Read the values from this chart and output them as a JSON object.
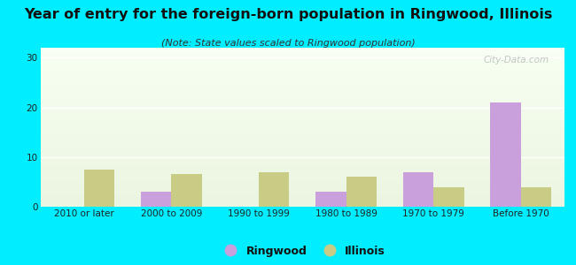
{
  "title": "Year of entry for the foreign-born population in Ringwood, Illinois",
  "subtitle": "(Note: State values scaled to Ringwood population)",
  "categories": [
    "2010 or later",
    "2000 to 2009",
    "1990 to 1999",
    "1980 to 1989",
    "1970 to 1979",
    "Before 1970"
  ],
  "ringwood_values": [
    0,
    3,
    0,
    3,
    7,
    21
  ],
  "illinois_values": [
    7.5,
    6.5,
    7,
    6,
    4,
    4
  ],
  "ringwood_color": "#c9a0dc",
  "illinois_color": "#c8cc84",
  "background_outer": "#00eeff",
  "ylim": [
    0,
    32
  ],
  "yticks": [
    0,
    10,
    20,
    30
  ],
  "bar_width": 0.35,
  "title_fontsize": 11.5,
  "subtitle_fontsize": 8,
  "tick_fontsize": 7.5,
  "legend_fontsize": 9,
  "watermark": "City-Data.com"
}
